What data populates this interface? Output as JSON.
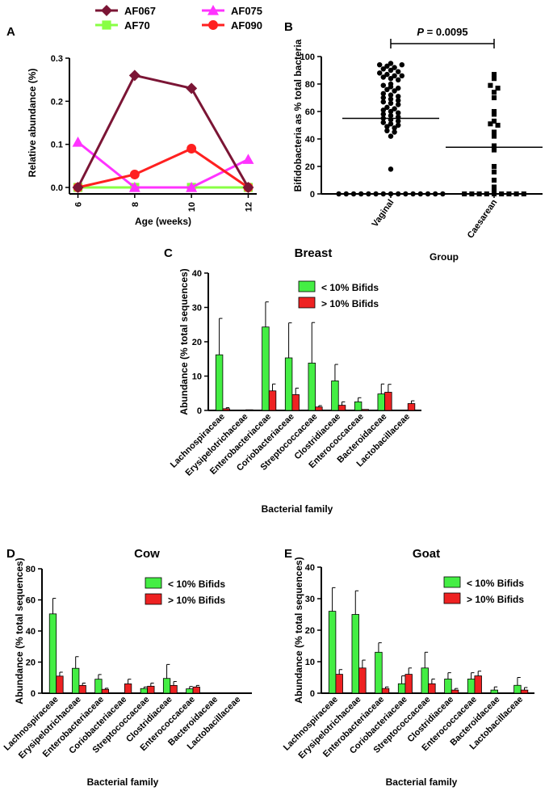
{
  "panels": {
    "A": "A",
    "B": "B",
    "C": "C",
    "D": "D",
    "E": "E"
  },
  "chart_data": [
    {
      "id": "A",
      "type": "line",
      "title": "",
      "xlabel": "Age (weeks)",
      "ylabel": "Relative abundance (%)",
      "x": [
        6,
        8,
        10,
        12
      ],
      "xticks": [
        "6",
        "8",
        "10",
        "12"
      ],
      "ylim": [
        0,
        0.3
      ],
      "yticks": [
        "0.0",
        "0.1",
        "0.2",
        "0.3"
      ],
      "legend_position": "top",
      "series": [
        {
          "name": "AF067",
          "color": "#7b1535",
          "marker": "diamond",
          "values": [
            0,
            0.26,
            0.23,
            0
          ]
        },
        {
          "name": "AF075",
          "color": "#ff33ff",
          "marker": "triangle",
          "values": [
            0.105,
            0,
            0,
            0.065
          ]
        },
        {
          "name": "AF70",
          "color": "#88ff44",
          "marker": "square",
          "values": [
            0,
            0,
            0,
            0
          ]
        },
        {
          "name": "AF090",
          "color": "#ff2020",
          "marker": "circle",
          "values": [
            0,
            0.03,
            0.09,
            0
          ]
        }
      ]
    },
    {
      "id": "B",
      "type": "scatter",
      "xlabel": "Group",
      "ylabel": "Bifidobacteria as % total bacteria",
      "ylim": [
        0,
        100
      ],
      "yticks": [
        "0",
        "20",
        "40",
        "60",
        "80",
        "100"
      ],
      "annotation_prefix": "P",
      "annotation_value": " = 0.0095",
      "groups": [
        {
          "name": "Vaginal",
          "marker": "circle",
          "mean": 55,
          "values": [
            95,
            94,
            93,
            92,
            94,
            91,
            90,
            89,
            88,
            87,
            86,
            86,
            85,
            84,
            83,
            80,
            79,
            78,
            77,
            76,
            75,
            73,
            72,
            71,
            70,
            69,
            68,
            67,
            66,
            65,
            63,
            62,
            61,
            60,
            59,
            58,
            57,
            56,
            55,
            54,
            53,
            52,
            51,
            50,
            49,
            48,
            46,
            45,
            42,
            18,
            0,
            0,
            0,
            0,
            0,
            0,
            0,
            0,
            0,
            0,
            0,
            0,
            0,
            0,
            0
          ]
        },
        {
          "name": "Caesarean",
          "marker": "square",
          "mean": 34,
          "values": [
            87,
            84,
            79,
            77,
            74,
            70,
            60,
            58,
            53,
            51,
            50,
            45,
            42,
            35,
            32,
            20,
            16,
            10,
            5,
            2,
            0,
            0,
            0,
            0,
            0,
            0,
            0,
            0,
            0
          ]
        }
      ]
    },
    {
      "id": "C",
      "type": "bar",
      "title": "Breast",
      "xlabel": "Bacterial family",
      "ylabel": "Abundance (% total sequences)",
      "ylim": [
        0,
        40
      ],
      "yticks": [
        "0",
        "10",
        "20",
        "30",
        "40"
      ],
      "categories": [
        "Lachnospiraceae",
        "Erysipelotrichaceae",
        "Enterobacteriaceae",
        "Coriobacteriaceae",
        "Streptococcaceae",
        "Clostridiaceae",
        "Enterococcaceae",
        "Bacteroidaceae",
        "Lactobacillaceae"
      ],
      "series": [
        {
          "name": "< 10% Bifids",
          "color": "#44ee44",
          "values": [
            16.2,
            0.1,
            24.3,
            15.3,
            13.8,
            8.6,
            2.5,
            4.8,
            0
          ],
          "errors": [
            10.6,
            0,
            7.3,
            10.2,
            11.8,
            4.8,
            1.2,
            2.9,
            0
          ]
        },
        {
          "name": "> 10% Bifids",
          "color": "#ee2222",
          "values": [
            0.5,
            0.2,
            5.7,
            4.6,
            1.0,
            1.5,
            0.3,
            5.3,
            2.0
          ],
          "errors": [
            0.3,
            0,
            2.0,
            1.9,
            0.4,
            1.0,
            0,
            2.3,
            0.8
          ]
        }
      ]
    },
    {
      "id": "D",
      "type": "bar",
      "title": "Cow",
      "xlabel": "Bacterial family",
      "ylabel": "Abundance (% total sequences)",
      "ylim": [
        0,
        80
      ],
      "yticks": [
        "0",
        "20",
        "40",
        "60",
        "80"
      ],
      "categories": [
        "Lachnospiraceae",
        "Erysipelotrichaceae",
        "Enterobacteriaceae",
        "Coriobacteriaceae",
        "Streptococcaceae",
        "Clostridiaceae",
        "Enterococcaceae",
        "Bacteroidaceae",
        "Lactobacillaceae"
      ],
      "series": [
        {
          "name": "< 10% Bifids",
          "color": "#44ee44",
          "values": [
            51,
            16,
            9,
            0,
            3,
            9.5,
            2.8,
            0,
            0
          ],
          "errors": [
            10,
            7.5,
            3,
            0,
            1,
            9,
            1.5,
            0,
            0
          ]
        },
        {
          "name": "> 10% Bifids",
          "color": "#ee2222",
          "values": [
            11,
            5,
            2.5,
            6,
            4.5,
            5,
            4,
            0,
            0
          ],
          "errors": [
            2.5,
            1.5,
            0.7,
            3,
            2,
            2.5,
            1,
            0,
            0
          ]
        }
      ]
    },
    {
      "id": "E",
      "type": "bar",
      "title": "Goat",
      "xlabel": "Bacterial family",
      "ylabel": "Abundance (% total sequences)",
      "ylim": [
        0,
        40
      ],
      "yticks": [
        "0",
        "10",
        "20",
        "30",
        "40"
      ],
      "categories": [
        "Lachnospiraceae",
        "Erysipelotrichaceae",
        "Enterobacteriaceae",
        "Coriobacteriaceae",
        "Streptococcaceae",
        "Clostridiaceae",
        "Enterococcaceae",
        "Bacteroidaceae",
        "Lactobacillaceae"
      ],
      "series": [
        {
          "name": "< 10% Bifids",
          "color": "#44ee44",
          "values": [
            26,
            25,
            13,
            3,
            8,
            4.5,
            4.5,
            1,
            2.5
          ],
          "errors": [
            7.5,
            7.5,
            3,
            2.5,
            5,
            2,
            2,
            1,
            2.5
          ]
        },
        {
          "name": "> 10% Bifids",
          "color": "#ee2222",
          "values": [
            6,
            8,
            1.5,
            6,
            3,
            1,
            5.5,
            0,
            1
          ],
          "errors": [
            1.5,
            2.5,
            0.5,
            2,
            1.5,
            0.5,
            1.5,
            0,
            0.8
          ]
        }
      ]
    }
  ]
}
